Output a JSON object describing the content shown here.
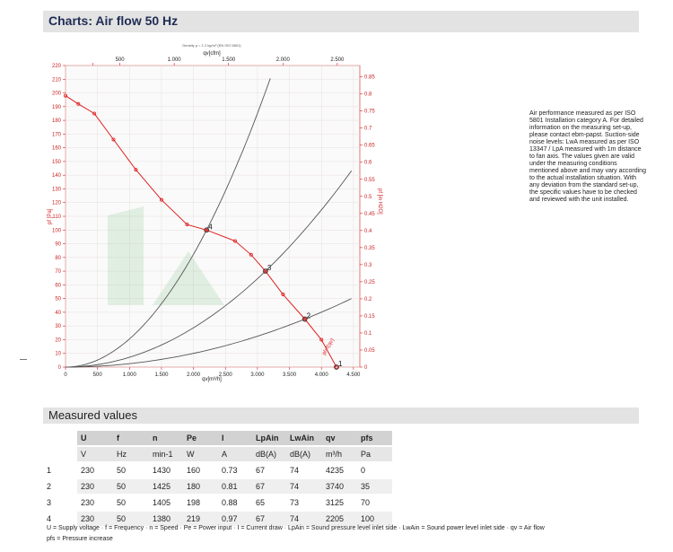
{
  "header": {
    "title": "Charts: Air flow 50 Hz"
  },
  "note": "Air performance measured as per ISO 5801 Installation category A. For detailed information on the measuring set-up, please contact ebm-papst. Suction-side noise levels: LwA measured as per ISO 13347 / LpA measured with 1m distance to fan axis. The values given are valid under the measuring conditions mentioned above and may vary according to the actual installation situation. With any deviation from the standard set-up, the specific values have to be checked and reviewed with the unit installed.",
  "chart_data": {
    "type": "line",
    "title": "",
    "top_note": "Density ρ = 1.2 kg/m³ (EN ISO 5801)",
    "xlabel": "qv[m³/h]",
    "x2label": "qv[cfm]",
    "ylabel": "pf [Pa]",
    "y2label": "pf [in H2O]",
    "xlim": [
      0,
      4600
    ],
    "ylim": [
      0,
      220
    ],
    "x_ticks": [
      0,
      500,
      1000,
      1500,
      2000,
      2500,
      3000,
      3500,
      4000,
      4500
    ],
    "x_tick_labels": [
      "0",
      "500",
      "1.000",
      "1.500",
      "2.000",
      "2.500",
      "3.000",
      "3.500",
      "4.000",
      "4.500"
    ],
    "x2_ticks": [
      250,
      500,
      1000,
      1500,
      2000,
      2500
    ],
    "x2_tick_labels": [
      "",
      "500",
      "1.000",
      "1.500",
      "2.000",
      "2.500"
    ],
    "y_ticks": [
      0,
      10,
      20,
      30,
      40,
      50,
      60,
      70,
      80,
      90,
      100,
      110,
      120,
      130,
      140,
      150,
      160,
      170,
      180,
      190,
      200,
      210,
      220
    ],
    "y2_ticks": [
      0,
      0.05,
      0.1,
      0.15,
      0.2,
      0.25,
      0.3,
      0.35,
      0.4,
      0.45,
      0.5,
      0.55,
      0.6,
      0.65,
      0.7,
      0.75,
      0.8,
      0.85
    ],
    "y2_tick_labels": [
      "0",
      "0.05",
      "0.1",
      "0.15",
      "0.2",
      "0.25",
      "0.3",
      "0.35",
      "0.4",
      "0.45",
      "0.5",
      "0.55",
      "0.6",
      "0.65",
      "0.7",
      "0.75",
      "0.8",
      "0.85"
    ],
    "grid": true,
    "fan_curve": {
      "color": "#e02020",
      "label": "pf=f(qv)",
      "x": [
        0,
        200,
        450,
        750,
        1100,
        1500,
        1900,
        2205,
        2650,
        2900,
        3125,
        3400,
        3740,
        4000,
        4235
      ],
      "y": [
        198,
        192,
        185,
        166,
        144,
        122,
        104,
        100,
        92,
        82,
        70,
        53,
        35,
        20,
        0
      ]
    },
    "system_curves": [
      {
        "name": "4",
        "color": "#555555",
        "k_x": 2205,
        "k_y": 100,
        "x_end": 3200
      },
      {
        "name": "3",
        "color": "#555555",
        "k_x": 3125,
        "k_y": 70,
        "x_end": 4470
      },
      {
        "name": "2",
        "color": "#555555",
        "k_x": 3740,
        "k_y": 35,
        "x_end": 4470
      }
    ],
    "operating_points": [
      {
        "label": "4",
        "x": 2205,
        "y": 100
      },
      {
        "label": "3",
        "x": 3125,
        "y": 70
      },
      {
        "label": "2",
        "x": 3740,
        "y": 35
      },
      {
        "label": "1",
        "x": 4235,
        "y": 0
      }
    ]
  },
  "measured": {
    "title": "Measured values",
    "headers": [
      "U",
      "f",
      "n",
      "Pe",
      "I",
      "LpAin",
      "LwAin",
      "qv",
      "pfs"
    ],
    "units": [
      "V",
      "Hz",
      "min-1",
      "W",
      "A",
      "dB(A)",
      "dB(A)",
      "m³/h",
      "Pa"
    ],
    "rows": [
      [
        "1",
        "230",
        "50",
        "1430",
        "160",
        "0.73",
        "67",
        "74",
        "4235",
        "0"
      ],
      [
        "2",
        "230",
        "50",
        "1425",
        "180",
        "0.81",
        "67",
        "74",
        "3740",
        "35"
      ],
      [
        "3",
        "230",
        "50",
        "1405",
        "198",
        "0.88",
        "65",
        "73",
        "3125",
        "70"
      ],
      [
        "4",
        "230",
        "50",
        "1380",
        "219",
        "0.97",
        "67",
        "74",
        "2205",
        "100"
      ]
    ],
    "legend": "U = Supply voltage · f = Frequency · n = Speed · Pe = Power input · I = Current draw · LpAin = Sound pressure level inlet side · LwAin = Sound power level inlet side · qv = Air flow",
    "legend2": "pfs = Pressure increase"
  }
}
